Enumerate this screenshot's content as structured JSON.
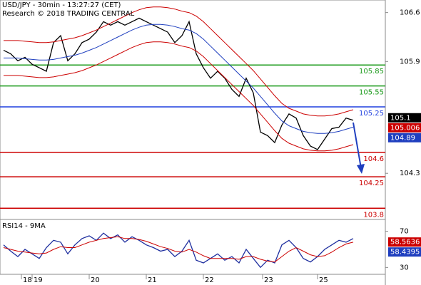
{
  "chart_data": [
    {
      "type": "line",
      "title": "USD/JPY - 30min - 13:27:27 (CET)",
      "subtitle": "Research © 2018 TRADING CENTRAL",
      "xlim": [
        -0.5,
        53.5
      ],
      "xticks": [
        {
          "value": 2.5,
          "label": "18"
        },
        {
          "value": 4,
          "label": "19"
        },
        {
          "value": 12,
          "label": "20"
        },
        {
          "value": 20,
          "label": "21"
        },
        {
          "value": 28,
          "label": "22"
        },
        {
          "value": 36.3,
          "label": "23"
        },
        {
          "value": 44,
          "label": "25"
        }
      ],
      "ylim": [
        103.67,
        106.78
      ],
      "yticks": [
        106.6,
        105.9,
        104.3
      ],
      "levels": [
        {
          "value": 105.85,
          "color": "#1a9a1a"
        },
        {
          "value": 105.55,
          "color": "#1a9a1a"
        },
        {
          "value": 105.25,
          "color": "#1f3fdf"
        },
        {
          "value": 104.6,
          "color": "#cc0000"
        },
        {
          "value": 104.25,
          "color": "#cc0000"
        },
        {
          "value": 103.8,
          "color": "#cc0000"
        }
      ],
      "markers": [
        {
          "value": 105.1,
          "color": "#000000"
        },
        {
          "value": 105.006,
          "color": "#cc0000"
        },
        {
          "value": 104.89,
          "color": "#1f3fbf"
        }
      ],
      "series": [
        {
          "color": "#000000",
          "values": [
            106.06,
            106.01,
            105.91,
            105.96,
            105.86,
            105.81,
            105.76,
            106.17,
            106.27,
            105.91,
            106.01,
            106.17,
            106.22,
            106.32,
            106.47,
            106.42,
            106.47,
            106.42,
            106.47,
            106.52,
            106.47,
            106.42,
            106.37,
            106.32,
            106.17,
            106.27,
            106.47,
            106.01,
            105.81,
            105.66,
            105.76,
            105.66,
            105.5,
            105.4,
            105.66,
            105.45,
            104.89,
            104.84,
            104.74,
            104.99,
            105.15,
            105.09,
            104.84,
            104.69,
            104.64,
            104.79,
            104.94,
            104.96,
            105.09,
            105.06
          ]
        },
        {
          "color": "#cc0000",
          "values": [
            106.2,
            106.2,
            106.2,
            106.19,
            106.18,
            106.17,
            106.17,
            106.18,
            106.2,
            106.22,
            106.24,
            106.27,
            106.31,
            106.35,
            106.4,
            106.45,
            106.5,
            106.55,
            106.6,
            106.64,
            106.67,
            106.68,
            106.68,
            106.67,
            106.65,
            106.62,
            106.6,
            106.55,
            106.47,
            106.37,
            106.27,
            106.17,
            106.07,
            105.97,
            105.87,
            105.77,
            105.65,
            105.53,
            105.41,
            105.3,
            105.23,
            105.19,
            105.15,
            105.13,
            105.12,
            105.12,
            105.13,
            105.15,
            105.18,
            105.21
          ]
        },
        {
          "color": "#cc0000",
          "values": [
            105.7,
            105.7,
            105.7,
            105.69,
            105.68,
            105.67,
            105.67,
            105.68,
            105.7,
            105.72,
            105.74,
            105.77,
            105.81,
            105.85,
            105.9,
            105.95,
            106.0,
            106.05,
            106.1,
            106.14,
            106.17,
            106.18,
            106.18,
            106.17,
            106.15,
            106.12,
            106.1,
            106.05,
            105.97,
            105.87,
            105.77,
            105.67,
            105.57,
            105.47,
            105.37,
            105.27,
            105.15,
            105.03,
            104.91,
            104.8,
            104.73,
            104.69,
            104.65,
            104.63,
            104.62,
            104.62,
            104.63,
            104.65,
            104.68,
            104.71
          ]
        },
        {
          "color": "#1f3fbf",
          "values": [
            105.95,
            105.95,
            105.95,
            105.94,
            105.93,
            105.92,
            105.92,
            105.93,
            105.95,
            105.97,
            105.99,
            106.02,
            106.06,
            106.1,
            106.15,
            106.2,
            106.25,
            106.3,
            106.35,
            106.39,
            106.42,
            106.43,
            106.43,
            106.42,
            106.4,
            106.37,
            106.35,
            106.3,
            106.22,
            106.12,
            106.02,
            105.92,
            105.82,
            105.72,
            105.62,
            105.52,
            105.4,
            105.28,
            105.16,
            105.05,
            104.98,
            104.94,
            104.9,
            104.88,
            104.87,
            104.87,
            104.88,
            104.9,
            104.93,
            104.96
          ]
        }
      ]
    },
    {
      "type": "line",
      "title": "RSI14 - 9MA",
      "xlim": [
        -0.5,
        53.5
      ],
      "ylim": [
        20,
        80
      ],
      "yticks": [
        70,
        30
      ],
      "markers": [
        {
          "value": 58.5636,
          "color": "#cc0000"
        },
        {
          "value": 58.4395,
          "color": "#1f3fbf"
        }
      ],
      "series": [
        {
          "color": "#1f2f9f",
          "values": [
            55,
            48,
            42,
            50,
            45,
            40,
            52,
            60,
            58,
            45,
            55,
            62,
            65,
            60,
            68,
            62,
            66,
            58,
            64,
            60,
            55,
            52,
            48,
            50,
            42,
            48,
            60,
            38,
            35,
            40,
            45,
            38,
            42,
            35,
            50,
            40,
            30,
            38,
            35,
            55,
            60,
            52,
            40,
            36,
            42,
            50,
            55,
            60,
            58,
            62
          ]
        },
        {
          "color": "#cc0000",
          "values": [
            52,
            50,
            48,
            47,
            46,
            45,
            46,
            50,
            53,
            52,
            52,
            55,
            58,
            60,
            62,
            63,
            64,
            62,
            62,
            61,
            59,
            56,
            53,
            51,
            48,
            47,
            50,
            47,
            43,
            40,
            40,
            40,
            40,
            39,
            42,
            42,
            39,
            37,
            36,
            42,
            48,
            52,
            48,
            44,
            42,
            43,
            47,
            52,
            56,
            58
          ]
        }
      ]
    }
  ]
}
